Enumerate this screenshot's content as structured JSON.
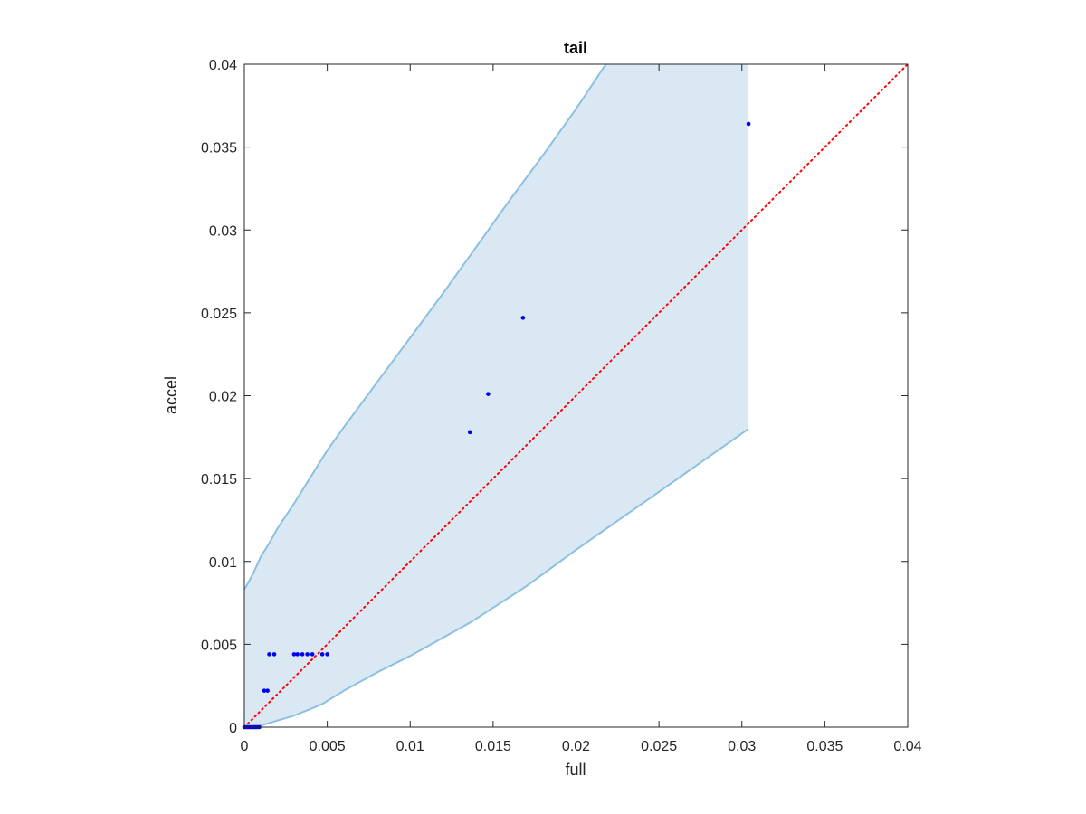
{
  "chart_data": {
    "type": "scatter",
    "title": "tail",
    "xlabel": "full",
    "ylabel": "accel",
    "xlim": [
      0,
      0.04
    ],
    "ylim": [
      0,
      0.04
    ],
    "xticks": [
      "0",
      "0.005",
      "0.01",
      "0.015",
      "0.02",
      "0.025",
      "0.03",
      "0.035",
      "0.04"
    ],
    "yticks": [
      "0",
      "0.005",
      "0.01",
      "0.015",
      "0.02",
      "0.025",
      "0.03",
      "0.035",
      "0.04"
    ],
    "grid": false,
    "series": [
      {
        "kind": "points",
        "color": "#0000ee",
        "x": [
          0,
          0.0001,
          0.0002,
          0.0003,
          0.0004,
          0.0005,
          0.0006,
          0.0007,
          0.0008,
          0.0009,
          0.0012,
          0.0014,
          0.0015,
          0.0018,
          0.003,
          0.0032,
          0.0035,
          0.0038,
          0.0041,
          0.0047,
          0.005,
          0.0136,
          0.0147,
          0.0168,
          0.0304
        ],
        "y": [
          0,
          0,
          0,
          0,
          0,
          0,
          0,
          0,
          0,
          0,
          0.0022,
          0.0022,
          0.0044,
          0.0044,
          0.0044,
          0.0044,
          0.0044,
          0.0044,
          0.0044,
          0.0044,
          0.0044,
          0.0178,
          0.0201,
          0.0247,
          0.0364
        ]
      },
      {
        "kind": "reference-line",
        "color": "#ff0000",
        "style": "dotted",
        "x": [
          0,
          0.04
        ],
        "y": [
          0,
          0.04
        ]
      },
      {
        "kind": "band",
        "fill_color": "#dae8f4",
        "edge_color": "#8cc0e0",
        "upper": {
          "x": [
            0,
            0.0005,
            0.001,
            0.0015,
            0.002,
            0.003,
            0.004,
            0.005,
            0.006,
            0.008,
            0.01,
            0.012,
            0.014,
            0.016,
            0.018,
            0.02,
            0.0218
          ],
          "y": [
            0.0083,
            0.0092,
            0.0103,
            0.0111,
            0.012,
            0.0135,
            0.0151,
            0.0167,
            0.0181,
            0.0208,
            0.0235,
            0.0262,
            0.029,
            0.0318,
            0.0345,
            0.0373,
            0.04
          ]
        },
        "lower": {
          "x": [
            0,
            0.001,
            0.002,
            0.003,
            0.004,
            0.0047,
            0.006,
            0.008,
            0.01,
            0.0136,
            0.017,
            0.02,
            0.025,
            0.0304
          ],
          "y": [
            0,
            0.0001,
            0.0004,
            0.0007,
            0.0011,
            0.0014,
            0.0022,
            0.0033,
            0.0043,
            0.0063,
            0.0085,
            0.0107,
            0.0142,
            0.018
          ]
        },
        "x_end": 0.0304
      }
    ]
  }
}
